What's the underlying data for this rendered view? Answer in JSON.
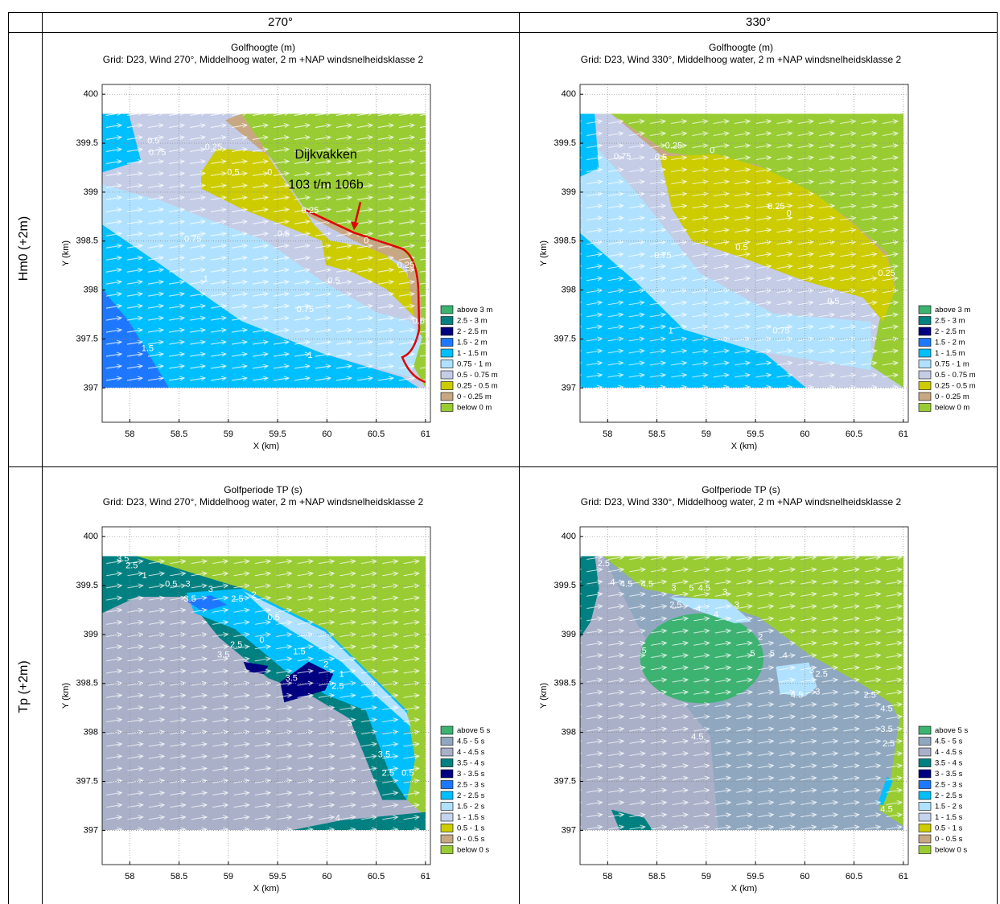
{
  "table": {
    "header": {
      "col1": "270°",
      "col2": "330°"
    },
    "rows": [
      {
        "label": "Hm0 (+2m)",
        "plots": [
          {
            "type": "contour",
            "title": "Golfhoogte (m)",
            "subtitle": "Grid: D23, Wind 270°, Middelhoog water, 2 m +NAP windsnelheidsklasse 2",
            "xlabel": "X (km)",
            "ylabel": "Y (km)",
            "xlim": [
              57.72,
              61.05
            ],
            "ylim": [
              396.65,
              400.1
            ],
            "xticks": [
              58,
              58.5,
              59,
              59.5,
              60,
              60.5,
              61
            ],
            "yticks": [
              397,
              397.5,
              398,
              398.5,
              399,
              399.5,
              400
            ],
            "grid": true,
            "legend": [
              {
                "label": "above 3 m",
                "color": "#3cb371"
              },
              {
                "label": "2.5 - 3 m",
                "color": "#008080"
              },
              {
                "label": "2 - 2.5 m",
                "color": "#000080"
              },
              {
                "label": "1.5 - 2 m",
                "color": "#1e78ff"
              },
              {
                "label": "1 - 1.5 m",
                "color": "#00bfff"
              },
              {
                "label": "0.75 - 1 m",
                "color": "#b0e2ff"
              },
              {
                "label": "0.5 - 0.75 m",
                "color": "#c4cce6"
              },
              {
                "label": "0.25 - 0.5 m",
                "color": "#cccc00"
              },
              {
                "label": "0 - 0.25 m",
                "color": "#c8a882"
              },
              {
                "label": "below 0 m",
                "color": "#99cc33"
              }
            ],
            "contour_labels": [
              {
                "label": "0.5",
                "x": 58.24,
                "y": 399.52
              },
              {
                "label": "0.75",
                "x": 58.28,
                "y": 399.4
              },
              {
                "label": "0.25",
                "x": 58.85,
                "y": 399.46
              },
              {
                "label": "0.5",
                "x": 59.05,
                "y": 399.2
              },
              {
                "label": "0",
                "x": 59.42,
                "y": 399.2
              },
              {
                "label": "0.25",
                "x": 59.83,
                "y": 398.81
              },
              {
                "label": "0.5",
                "x": 59.56,
                "y": 398.57
              },
              {
                "label": "0.75",
                "x": 58.64,
                "y": 398.52
              },
              {
                "label": "0",
                "x": 60.4,
                "y": 398.5
              },
              {
                "label": "0.25",
                "x": 60.8,
                "y": 398.25
              },
              {
                "label": "0.5",
                "x": 60.07,
                "y": 398.09
              },
              {
                "label": "1",
                "x": 58.77,
                "y": 398.11
              },
              {
                "label": "0.75",
                "x": 59.78,
                "y": 397.8
              },
              {
                "label": "0.5",
                "x": 60.93,
                "y": 397.68
              },
              {
                "label": "1.5",
                "x": 58.18,
                "y": 397.4
              },
              {
                "label": "1",
                "x": 59.83,
                "y": 397.33
              }
            ],
            "annotations": [
              {
                "label": "Dijkvakken",
                "x": 59.99,
                "y": 399.38
              },
              {
                "label": "103 t/m 106b",
                "x": 59.99,
                "y": 399.07
              }
            ]
          },
          {
            "type": "contour",
            "title": "Golfhoogte (m)",
            "subtitle": "Grid: D23, Wind 330°, Middelhoog water, 2 m +NAP windsnelheidsklasse 2",
            "xlabel": "X (km)",
            "ylabel": "Y (km)",
            "xlim": [
              57.72,
              61.05
            ],
            "ylim": [
              396.65,
              400.1
            ],
            "xticks": [
              58,
              58.5,
              59,
              59.5,
              60,
              60.5,
              61
            ],
            "yticks": [
              397,
              397.5,
              398,
              398.5,
              399,
              399.5,
              400
            ],
            "grid": true,
            "legend": [
              {
                "label": "above 3 m",
                "color": "#3cb371"
              },
              {
                "label": "2.5 - 3 m",
                "color": "#008080"
              },
              {
                "label": "2 - 2.5 m",
                "color": "#000080"
              },
              {
                "label": "1.5 - 2 m",
                "color": "#1e78ff"
              },
              {
                "label": "1 - 1.5 m",
                "color": "#00bfff"
              },
              {
                "label": "0.75 - 1 m",
                "color": "#b0e2ff"
              },
              {
                "label": "0.5 - 0.75 m",
                "color": "#c4cce6"
              },
              {
                "label": "0.25 - 0.5 m",
                "color": "#cccc00"
              },
              {
                "label": "0 - 0.25 m",
                "color": "#c8a882"
              },
              {
                "label": "below 0 m",
                "color": "#99cc33"
              }
            ],
            "contour_labels": [
              {
                "label": "0.75",
                "x": 58.15,
                "y": 399.36
              },
              {
                "label": "0.5",
                "x": 58.54,
                "y": 399.35
              },
              {
                "label": "0.25",
                "x": 58.67,
                "y": 399.47
              },
              {
                "label": "0",
                "x": 59.06,
                "y": 399.42
              },
              {
                "label": "0.25",
                "x": 59.71,
                "y": 398.85
              },
              {
                "label": "0",
                "x": 59.84,
                "y": 398.78
              },
              {
                "label": "0.5",
                "x": 59.36,
                "y": 398.43
              },
              {
                "label": "0.75",
                "x": 58.56,
                "y": 398.35
              },
              {
                "label": "0.25",
                "x": 60.83,
                "y": 398.17
              },
              {
                "label": "0.5",
                "x": 60.29,
                "y": 397.88
              },
              {
                "label": "0.75",
                "x": 59.76,
                "y": 397.58
              },
              {
                "label": "1",
                "x": 58.64,
                "y": 397.58
              }
            ]
          }
        ]
      },
      {
        "label": "Tp (+2m)",
        "plots": [
          {
            "type": "contour",
            "title": "Golfperiode TP (s)",
            "subtitle": "Grid: D23, Wind 270°, Middelhoog water, 2 m +NAP windsnelheidsklasse 2",
            "xlabel": "X (km)",
            "ylabel": "Y (km)",
            "xlim": [
              57.72,
              61.05
            ],
            "ylim": [
              396.65,
              400.1
            ],
            "xticks": [
              58,
              58.5,
              59,
              59.5,
              60,
              60.5,
              61
            ],
            "yticks": [
              397,
              397.5,
              398,
              398.5,
              399,
              399.5,
              400
            ],
            "grid": true,
            "legend": [
              {
                "label": "above 5 s",
                "color": "#3cb371"
              },
              {
                "label": "4.5 - 5 s",
                "color": "#8fa8c0"
              },
              {
                "label": "4 - 4.5 s",
                "color": "#a9b0c8"
              },
              {
                "label": "3.5 - 4 s",
                "color": "#008080"
              },
              {
                "label": "3 - 3.5 s",
                "color": "#000080"
              },
              {
                "label": "2.5 - 3 s",
                "color": "#1e78ff"
              },
              {
                "label": "2 - 2.5 s",
                "color": "#00bfff"
              },
              {
                "label": "1.5 - 2 s",
                "color": "#b0e2ff"
              },
              {
                "label": "1 - 1.5 s",
                "color": "#c4d4ee"
              },
              {
                "label": "0.5 - 1 s",
                "color": "#cccc00"
              },
              {
                "label": "0 - 0.5 s",
                "color": "#c8a882"
              },
              {
                "label": "below 0 s",
                "color": "#99cc33"
              }
            ],
            "contour_labels": [
              {
                "label": "3.5",
                "x": 57.93,
                "y": 399.77
              },
              {
                "label": "2.5",
                "x": 58.02,
                "y": 399.7
              },
              {
                "label": "1",
                "x": 58.15,
                "y": 399.6
              },
              {
                "label": "0.5",
                "x": 58.42,
                "y": 399.51
              },
              {
                "label": "3",
                "x": 58.59,
                "y": 399.51
              },
              {
                "label": "3.5",
                "x": 58.61,
                "y": 399.36
              },
              {
                "label": "3",
                "x": 58.82,
                "y": 399.46
              },
              {
                "label": "2.5",
                "x": 59.09,
                "y": 399.36
              },
              {
                "label": "2",
                "x": 59.26,
                "y": 399.4
              },
              {
                "label": "0.5",
                "x": 59.46,
                "y": 399.17
              },
              {
                "label": "2.5",
                "x": 59.08,
                "y": 398.89
              },
              {
                "label": "3.5",
                "x": 58.95,
                "y": 398.79
              },
              {
                "label": "0",
                "x": 59.34,
                "y": 398.94
              },
              {
                "label": "1.5",
                "x": 59.72,
                "y": 398.82
              },
              {
                "label": "2",
                "x": 59.99,
                "y": 398.69
              },
              {
                "label": "1",
                "x": 60.15,
                "y": 398.59
              },
              {
                "label": "3.5",
                "x": 59.64,
                "y": 398.55
              },
              {
                "label": "2.5",
                "x": 60.11,
                "y": 398.47
              },
              {
                "label": "3",
                "x": 60.23,
                "y": 398.09
              },
              {
                "label": "3.5",
                "x": 60.58,
                "y": 397.77
              },
              {
                "label": "2.5",
                "x": 60.62,
                "y": 397.58
              },
              {
                "label": "0.5",
                "x": 60.82,
                "y": 397.58
              },
              {
                "label": "4",
                "x": 60.11,
                "y": 397.12
              }
            ]
          },
          {
            "type": "contour",
            "title": "Golfperiode TP (s)",
            "subtitle": "Grid: D23, Wind 330°, Middelhoog water, 2 m +NAP windsnelheidsklasse 2",
            "xlabel": "X (km)",
            "ylabel": "Y (km)",
            "xlim": [
              57.72,
              61.05
            ],
            "ylim": [
              396.65,
              400.1
            ],
            "xticks": [
              58,
              58.5,
              59,
              59.5,
              60,
              60.5,
              61
            ],
            "yticks": [
              397,
              397.5,
              398,
              398.5,
              399,
              399.5,
              400
            ],
            "grid": true,
            "legend": [
              {
                "label": "above 5 s",
                "color": "#3cb371"
              },
              {
                "label": "4.5 - 5 s",
                "color": "#8fa8c0"
              },
              {
                "label": "4 - 4.5 s",
                "color": "#a9b0c8"
              },
              {
                "label": "3.5 - 4 s",
                "color": "#008080"
              },
              {
                "label": "3 - 3.5 s",
                "color": "#000080"
              },
              {
                "label": "2.5 - 3 s",
                "color": "#1e78ff"
              },
              {
                "label": "2 - 2.5 s",
                "color": "#00bfff"
              },
              {
                "label": "1.5 - 2 s",
                "color": "#b0e2ff"
              },
              {
                "label": "1 - 1.5 s",
                "color": "#c4d4ee"
              },
              {
                "label": "0.5 - 1 s",
                "color": "#cccc00"
              },
              {
                "label": "0 - 0.5 s",
                "color": "#c8a882"
              },
              {
                "label": "below 0 s",
                "color": "#99cc33"
              }
            ],
            "contour_labels": [
              {
                "label": "2.5",
                "x": 57.96,
                "y": 399.72
              },
              {
                "label": "4",
                "x": 58.05,
                "y": 399.53
              },
              {
                "label": "4.5",
                "x": 58.19,
                "y": 399.51
              },
              {
                "label": "4.5",
                "x": 58.4,
                "y": 399.51
              },
              {
                "label": "3",
                "x": 58.67,
                "y": 399.47
              },
              {
                "label": "5",
                "x": 58.85,
                "y": 399.47
              },
              {
                "label": "4.5",
                "x": 58.98,
                "y": 399.47
              },
              {
                "label": "3",
                "x": 59.19,
                "y": 399.43
              },
              {
                "label": "3",
                "x": 59.31,
                "y": 399.3
              },
              {
                "label": "2.5",
                "x": 58.69,
                "y": 399.3
              },
              {
                "label": "4",
                "x": 58.92,
                "y": 399.26
              },
              {
                "label": "4",
                "x": 59.1,
                "y": 399.2
              },
              {
                "label": "5",
                "x": 58.37,
                "y": 398.83
              },
              {
                "label": "2",
                "x": 59.55,
                "y": 398.97
              },
              {
                "label": "5",
                "x": 59.47,
                "y": 398.8
              },
              {
                "label": "5",
                "x": 59.67,
                "y": 398.8
              },
              {
                "label": "4",
                "x": 59.8,
                "y": 398.78
              },
              {
                "label": "3",
                "x": 60.07,
                "y": 398.63
              },
              {
                "label": "2.5",
                "x": 60.17,
                "y": 398.59
              },
              {
                "label": "4.5",
                "x": 59.92,
                "y": 398.38
              },
              {
                "label": "3",
                "x": 60.13,
                "y": 398.41
              },
              {
                "label": "2.5",
                "x": 60.66,
                "y": 398.38
              },
              {
                "label": "4.5",
                "x": 60.83,
                "y": 398.24
              },
              {
                "label": "4.5",
                "x": 58.91,
                "y": 397.95
              },
              {
                "label": "3.5",
                "x": 60.83,
                "y": 398.03
              },
              {
                "label": "2.5",
                "x": 60.85,
                "y": 397.88
              },
              {
                "label": "4.5",
                "x": 60.83,
                "y": 397.21
              }
            ]
          }
        ]
      }
    ]
  }
}
